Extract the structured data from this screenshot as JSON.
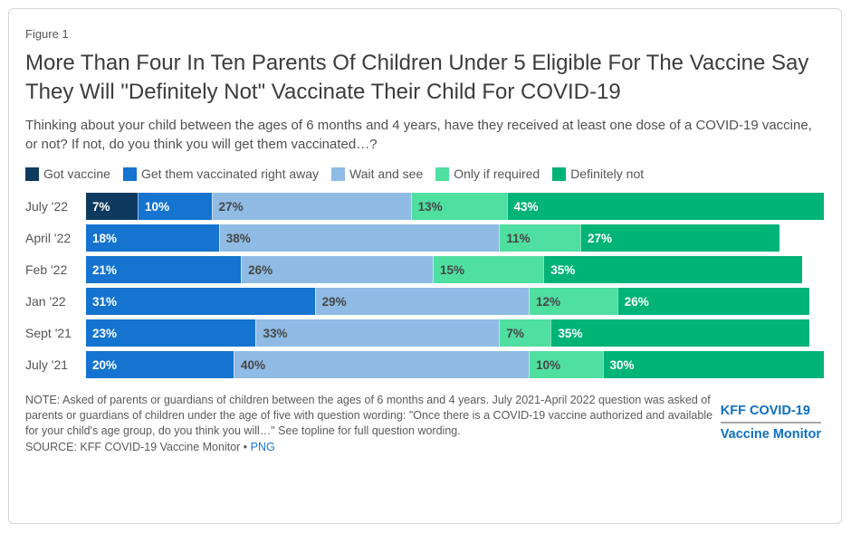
{
  "figure_label": "Figure 1",
  "title": "More Than Four In Ten Parents Of Children Under 5 Eligible For The Vaccine Say They Will \"Definitely Not\" Vaccinate Their Child For COVID-19",
  "subtitle": "Thinking about your child between the ages of 6 months and 4 years, have they received at least one dose of a COVID-19 vaccine, or not? If not, do you think you will get them vaccinated…?",
  "chart_data": {
    "type": "bar",
    "stacked": true,
    "orientation": "horizontal",
    "xlim": [
      0,
      100
    ],
    "unit": "%",
    "categories": [
      "July '22",
      "April '22",
      "Feb '22",
      "Jan '22",
      "Sept '21",
      "July '21"
    ],
    "series": [
      {
        "name": "Got vaccine",
        "color": "#0f3a5f",
        "label_color": "#ffffff",
        "values": [
          7,
          0,
          0,
          0,
          0,
          0
        ]
      },
      {
        "name": "Get them vaccinated right away",
        "color": "#1474cf",
        "label_color": "#ffffff",
        "values": [
          10,
          18,
          21,
          31,
          23,
          20
        ]
      },
      {
        "name": "Wait and see",
        "color": "#8fbbe4",
        "label_color": "#474747",
        "values": [
          27,
          38,
          26,
          29,
          33,
          40
        ]
      },
      {
        "name": "Only if required",
        "color": "#4fdfa1",
        "label_color": "#474747",
        "values": [
          13,
          11,
          15,
          12,
          7,
          10
        ]
      },
      {
        "name": "Definitely not",
        "color": "#00b377",
        "label_color": "#ffffff",
        "values": [
          43,
          27,
          35,
          26,
          35,
          30
        ]
      }
    ],
    "legend_position": "top"
  },
  "footer": {
    "note": "NOTE: Asked of parents or guardians of children between the ages of 6 months and 4 years. July 2021-April 2022 question was asked of parents or guardians of children under the age of five with question wording: \"Once there is a COVID-19 vaccine authorized and available for your child's age group, do you think you will…\" See topline for full question wording.",
    "source_prefix": "SOURCE: KFF COVID-19 Vaccine Monitor • ",
    "source_link": "PNG"
  },
  "logo": {
    "line1": "KFF COVID-19",
    "line2": "Vaccine Monitor"
  }
}
